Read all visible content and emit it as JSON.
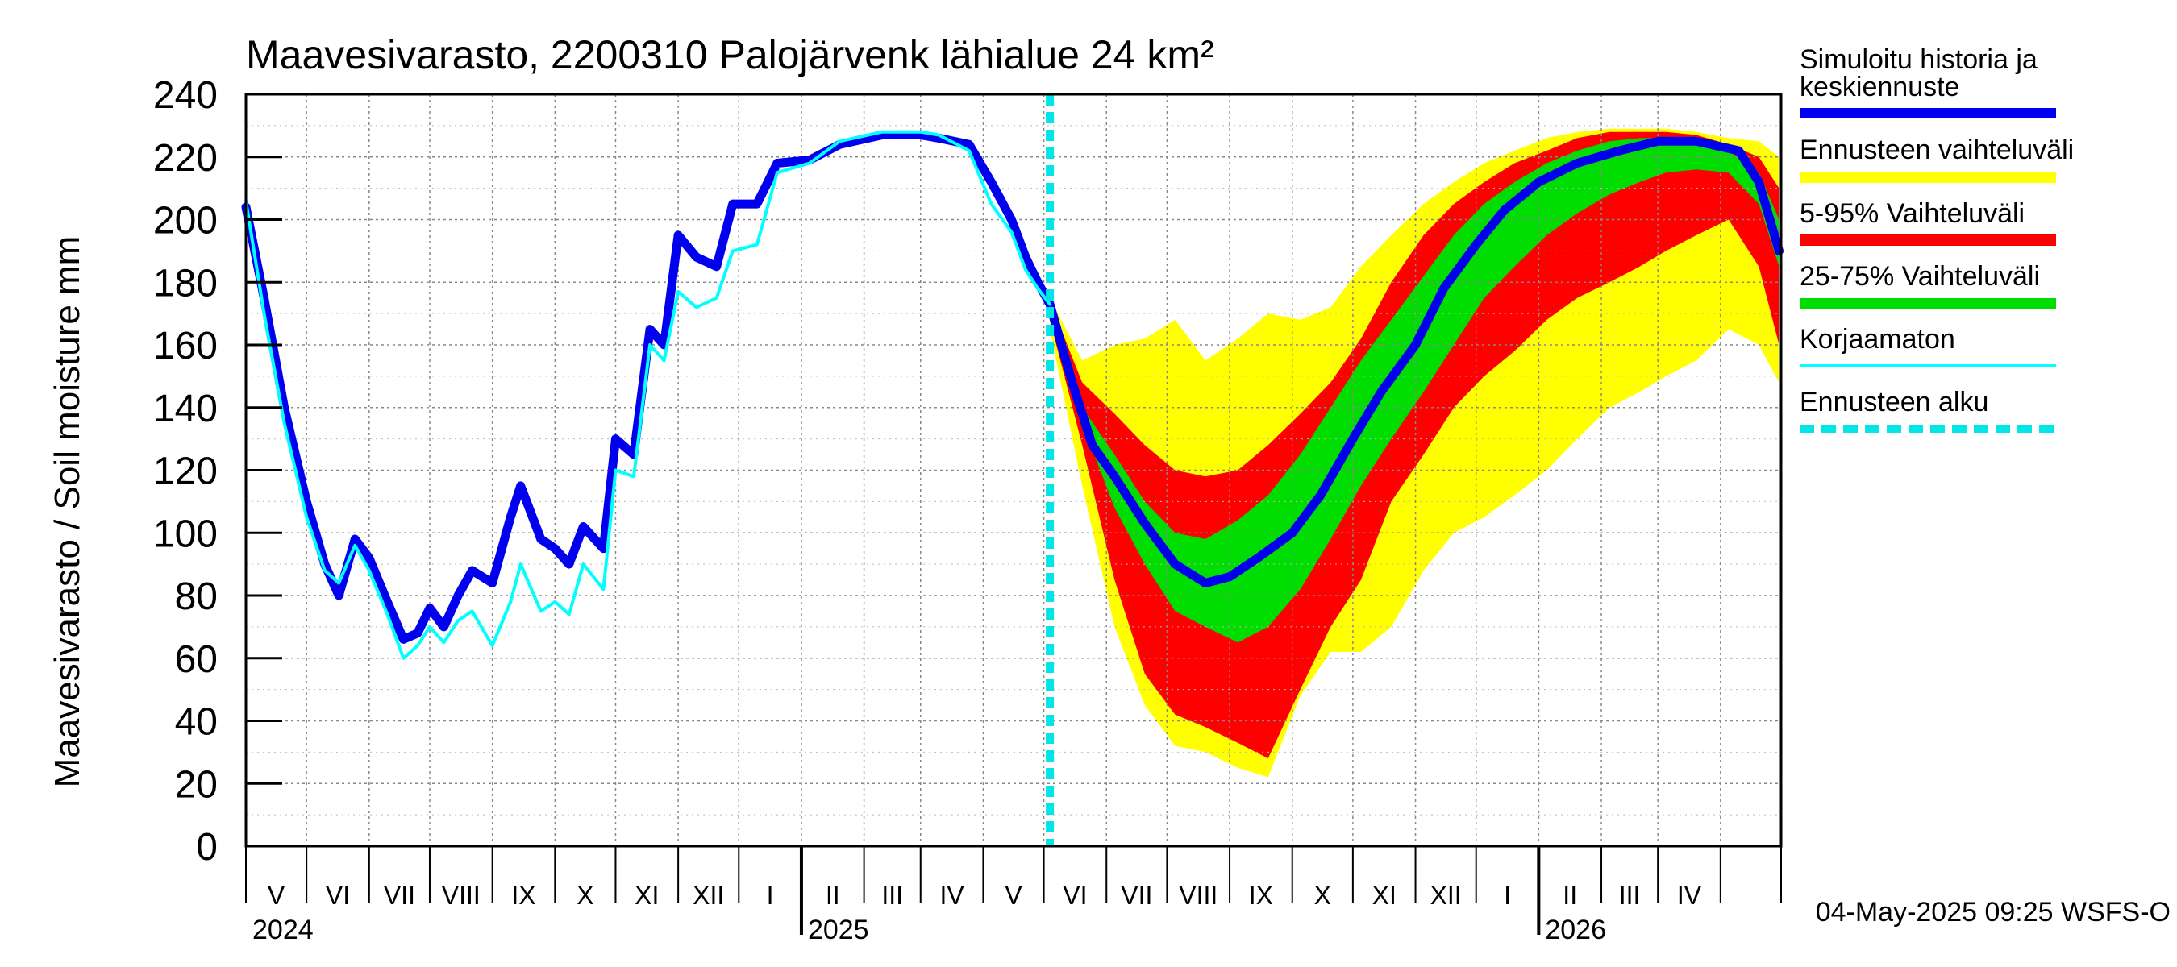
{
  "chart_data": {
    "type": "area",
    "title": "Maavesivarasto, 2200310 Palojärvenk lähialue 24 km²",
    "ylabel": "Maavesivarasto / Soil moisture   mm",
    "ylim": [
      0,
      240
    ],
    "yticks": [
      "0",
      "20",
      "40",
      "60",
      "80",
      "100",
      "120",
      "140",
      "160",
      "180",
      "200",
      "220",
      "240"
    ],
    "x_start": "2024-04-01",
    "x_end": "2026-04-30",
    "month_labels": [
      "V",
      "VI",
      "VII",
      "VIII",
      "IX",
      "X",
      "XI",
      "XII",
      "I",
      "II",
      "III",
      "IV",
      "V",
      "VI",
      "VII",
      "VIII",
      "IX",
      "X",
      "XI",
      "XII",
      "I",
      "II",
      "III",
      "IV"
    ],
    "year_labels": [
      "2024",
      "2025",
      "2026"
    ],
    "forecast_start": "2025-05-04",
    "timestamp": "04-May-2025 09:25 WSFS-O",
    "legend": [
      {
        "label": "Simuloitu historia ja keskiennuste",
        "color": "#0000ee"
      },
      {
        "label": "Ennusteen vaihteluväli",
        "color": "#ffff00"
      },
      {
        "label": "5-95% Vaihteluväli",
        "color": "#ff0000"
      },
      {
        "label": "25-75% Vaihteluväli",
        "color": "#00dd00"
      },
      {
        "label": "Korjaamaton",
        "color": "#00ffff"
      },
      {
        "label": "Ennusteen alku",
        "color": "#00e5e5"
      }
    ],
    "series": [
      {
        "name": "Simuloitu historia ja keskiennuste",
        "color": "#0000ee",
        "points": [
          [
            "2024-04-01",
            204
          ],
          [
            "2024-04-10",
            175
          ],
          [
            "2024-04-20",
            140
          ],
          [
            "2024-05-01",
            110
          ],
          [
            "2024-05-10",
            90
          ],
          [
            "2024-05-17",
            80
          ],
          [
            "2024-05-25",
            98
          ],
          [
            "2024-06-01",
            92
          ],
          [
            "2024-06-10",
            78
          ],
          [
            "2024-06-18",
            66
          ],
          [
            "2024-06-25",
            68
          ],
          [
            "2024-07-01",
            76
          ],
          [
            "2024-07-08",
            70
          ],
          [
            "2024-07-15",
            80
          ],
          [
            "2024-07-22",
            88
          ],
          [
            "2024-08-01",
            84
          ],
          [
            "2024-08-10",
            105
          ],
          [
            "2024-08-15",
            115
          ],
          [
            "2024-08-25",
            98
          ],
          [
            "2024-09-01",
            95
          ],
          [
            "2024-09-08",
            90
          ],
          [
            "2024-09-15",
            102
          ],
          [
            "2024-09-25",
            95
          ],
          [
            "2024-10-01",
            130
          ],
          [
            "2024-10-10",
            125
          ],
          [
            "2024-10-18",
            165
          ],
          [
            "2024-10-25",
            160
          ],
          [
            "2024-11-01",
            195
          ],
          [
            "2024-11-10",
            188
          ],
          [
            "2024-11-20",
            185
          ],
          [
            "2024-11-28",
            205
          ],
          [
            "2024-12-10",
            205
          ],
          [
            "2024-12-20",
            218
          ],
          [
            "2025-01-05",
            219
          ],
          [
            "2025-01-20",
            224
          ],
          [
            "2025-02-10",
            227
          ],
          [
            "2025-03-01",
            227
          ],
          [
            "2025-03-10",
            226
          ],
          [
            "2025-03-25",
            224
          ],
          [
            "2025-04-05",
            212
          ],
          [
            "2025-04-15",
            200
          ],
          [
            "2025-04-22",
            188
          ],
          [
            "2025-04-28",
            180
          ],
          [
            "2025-05-04",
            173
          ],
          [
            "2025-05-15",
            148
          ],
          [
            "2025-05-25",
            128
          ],
          [
            "2025-06-05",
            118
          ],
          [
            "2025-06-20",
            103
          ],
          [
            "2025-07-05",
            90
          ],
          [
            "2025-07-20",
            84
          ],
          [
            "2025-08-01",
            86
          ],
          [
            "2025-08-15",
            92
          ],
          [
            "2025-09-01",
            100
          ],
          [
            "2025-09-15",
            112
          ],
          [
            "2025-10-01",
            130
          ],
          [
            "2025-10-15",
            145
          ],
          [
            "2025-11-01",
            160
          ],
          [
            "2025-11-15",
            178
          ],
          [
            "2025-12-01",
            192
          ],
          [
            "2025-12-15",
            203
          ],
          [
            "2026-01-01",
            212
          ],
          [
            "2026-01-20",
            218
          ],
          [
            "2026-02-10",
            222
          ],
          [
            "2026-03-01",
            225
          ],
          [
            "2026-03-20",
            225
          ],
          [
            "2026-04-10",
            222
          ],
          [
            "2026-04-20",
            212
          ],
          [
            "2026-04-30",
            190
          ]
        ]
      },
      {
        "name": "Korjaamaton",
        "color": "#00ffff",
        "points": [
          [
            "2024-04-01",
            206
          ],
          [
            "2024-04-10",
            170
          ],
          [
            "2024-04-20",
            135
          ],
          [
            "2024-05-01",
            105
          ],
          [
            "2024-05-10",
            88
          ],
          [
            "2024-05-17",
            84
          ],
          [
            "2024-05-25",
            96
          ],
          [
            "2024-06-01",
            88
          ],
          [
            "2024-06-10",
            74
          ],
          [
            "2024-06-18",
            60
          ],
          [
            "2024-06-25",
            64
          ],
          [
            "2024-07-01",
            70
          ],
          [
            "2024-07-08",
            65
          ],
          [
            "2024-07-15",
            72
          ],
          [
            "2024-07-22",
            75
          ],
          [
            "2024-08-01",
            64
          ],
          [
            "2024-08-10",
            78
          ],
          [
            "2024-08-15",
            90
          ],
          [
            "2024-08-25",
            75
          ],
          [
            "2024-09-01",
            78
          ],
          [
            "2024-09-08",
            74
          ],
          [
            "2024-09-15",
            90
          ],
          [
            "2024-09-25",
            82
          ],
          [
            "2024-10-01",
            120
          ],
          [
            "2024-10-10",
            118
          ],
          [
            "2024-10-18",
            160
          ],
          [
            "2024-10-25",
            155
          ],
          [
            "2024-11-01",
            177
          ],
          [
            "2024-11-10",
            172
          ],
          [
            "2024-11-20",
            175
          ],
          [
            "2024-11-28",
            190
          ],
          [
            "2024-12-10",
            192
          ],
          [
            "2024-12-20",
            215
          ],
          [
            "2025-01-05",
            218
          ],
          [
            "2025-01-20",
            225
          ],
          [
            "2025-02-10",
            228
          ],
          [
            "2025-03-01",
            228
          ],
          [
            "2025-03-10",
            227
          ],
          [
            "2025-03-25",
            222
          ],
          [
            "2025-04-05",
            205
          ],
          [
            "2025-04-15",
            196
          ],
          [
            "2025-04-22",
            184
          ],
          [
            "2025-04-28",
            178
          ],
          [
            "2025-05-04",
            173
          ]
        ]
      }
    ],
    "bands": [
      {
        "name": "Ennusteen vaihteluväli",
        "color": "#ffff00",
        "x": [
          "2025-05-04",
          "2025-05-20",
          "2025-06-05",
          "2025-06-20",
          "2025-07-05",
          "2025-07-20",
          "2025-08-05",
          "2025-08-20",
          "2025-09-05",
          "2025-09-20",
          "2025-10-05",
          "2025-10-20",
          "2025-11-05",
          "2025-11-20",
          "2025-12-05",
          "2025-12-20",
          "2026-01-05",
          "2026-01-20",
          "2026-02-05",
          "2026-02-20",
          "2026-03-05",
          "2026-03-20",
          "2026-04-05",
          "2026-04-20",
          "2026-04-30"
        ],
        "upper": [
          175,
          155,
          160,
          162,
          168,
          155,
          162,
          170,
          168,
          172,
          185,
          195,
          205,
          212,
          218,
          222,
          226,
          228,
          229,
          229,
          229,
          228,
          226,
          225,
          220
        ],
        "lower": [
          165,
          115,
          70,
          45,
          32,
          30,
          25,
          22,
          48,
          62,
          62,
          70,
          88,
          100,
          105,
          112,
          120,
          130,
          140,
          145,
          150,
          155,
          165,
          160,
          148
        ]
      },
      {
        "name": "5-95% Vaihteluväli",
        "color": "#ff0000",
        "x": [
          "2025-05-04",
          "2025-05-20",
          "2025-06-05",
          "2025-06-20",
          "2025-07-05",
          "2025-07-20",
          "2025-08-05",
          "2025-08-20",
          "2025-09-05",
          "2025-09-20",
          "2025-10-05",
          "2025-10-20",
          "2025-11-05",
          "2025-11-20",
          "2025-12-05",
          "2025-12-20",
          "2026-01-05",
          "2026-01-20",
          "2026-02-05",
          "2026-02-20",
          "2026-03-05",
          "2026-03-20",
          "2026-04-05",
          "2026-04-20",
          "2026-04-30"
        ],
        "upper": [
          174,
          148,
          138,
          128,
          120,
          118,
          120,
          128,
          138,
          148,
          162,
          180,
          195,
          205,
          212,
          218,
          222,
          226,
          228,
          228,
          228,
          227,
          224,
          220,
          210
        ],
        "lower": [
          168,
          128,
          85,
          55,
          42,
          38,
          33,
          28,
          50,
          70,
          85,
          110,
          125,
          140,
          150,
          158,
          168,
          175,
          180,
          185,
          190,
          195,
          200,
          185,
          160
        ]
      },
      {
        "name": "25-75% Vaihteluväli",
        "color": "#00dd00",
        "x": [
          "2025-05-04",
          "2025-05-20",
          "2025-06-05",
          "2025-06-20",
          "2025-07-05",
          "2025-07-20",
          "2025-08-05",
          "2025-08-20",
          "2025-09-05",
          "2025-09-20",
          "2025-10-05",
          "2025-10-20",
          "2025-11-05",
          "2025-11-20",
          "2025-12-05",
          "2025-12-20",
          "2026-01-05",
          "2026-01-20",
          "2026-02-05",
          "2026-02-20",
          "2026-03-05",
          "2026-03-20",
          "2026-04-05",
          "2026-04-20",
          "2026-04-30"
        ],
        "upper": [
          173,
          140,
          125,
          110,
          100,
          98,
          104,
          112,
          125,
          140,
          155,
          168,
          182,
          195,
          205,
          212,
          218,
          222,
          225,
          226,
          226,
          225,
          222,
          215,
          200
        ],
        "lower": [
          171,
          135,
          108,
          90,
          75,
          70,
          65,
          70,
          82,
          98,
          115,
          130,
          145,
          160,
          175,
          185,
          195,
          202,
          208,
          212,
          215,
          216,
          215,
          205,
          185
        ]
      }
    ]
  }
}
